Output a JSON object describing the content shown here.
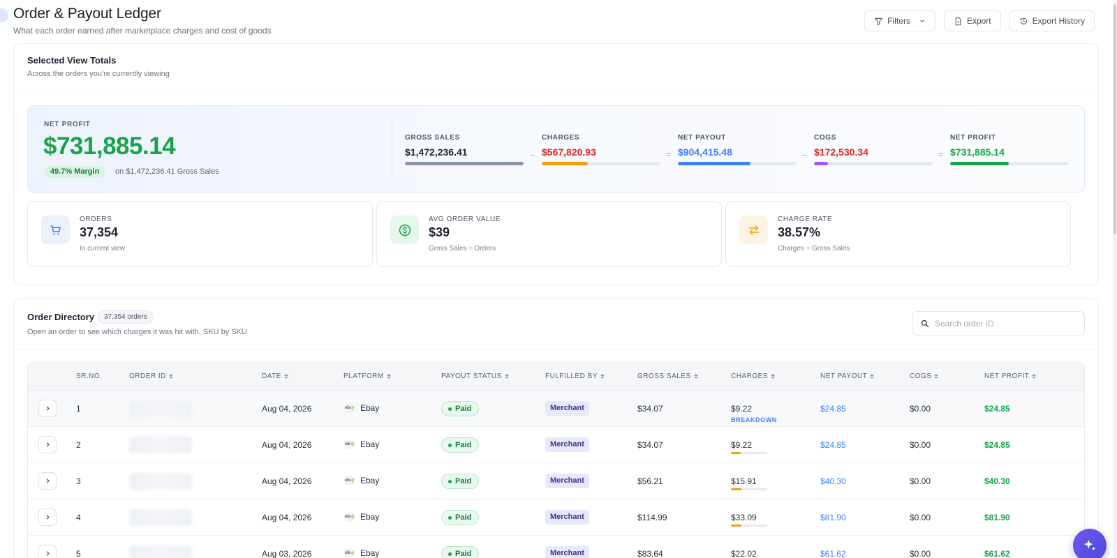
{
  "header": {
    "title": "Order & Payout Ledger",
    "subtitle": "What each order earned after marketplace charges and cost of goods",
    "filters_label": "Filters",
    "export_label": "Export",
    "export_history_label": "Export History"
  },
  "totals": {
    "title": "Selected View Totals",
    "subtitle": "Across the orders you're currently viewing",
    "hero": {
      "label": "NET PROFIT",
      "value": "$731,885.14",
      "margin_badge": "49.7% Margin",
      "margin_text": "on $1,472,236.41 Gross Sales"
    },
    "flow": [
      {
        "label": "GROSS SALES",
        "value": "$1,472,236.41",
        "fill": 1.0,
        "color": "#8a94a8",
        "value_color": "#1f2330"
      },
      {
        "label": "CHARGES",
        "value": "$567,820.93",
        "fill": 0.386,
        "color": "#f59e0b",
        "value_color": "#dc2626"
      },
      {
        "label": "NET PAYOUT",
        "value": "$904,415.48",
        "fill": 0.614,
        "color": "#3b82f6",
        "value_color": "#3b82f6"
      },
      {
        "label": "COGS",
        "value": "$172,530.34",
        "fill": 0.117,
        "color": "#a855f7",
        "value_color": "#dc2626"
      },
      {
        "label": "NET PROFIT",
        "value": "$731,885.14",
        "fill": 0.497,
        "color": "#16a34a",
        "value_color": "#16a34a"
      }
    ],
    "operators": [
      "–",
      "=",
      "–",
      "="
    ],
    "kpis": [
      {
        "label": "ORDERS",
        "value": "37,354",
        "sub": "In current view",
        "icon": "cart-icon"
      },
      {
        "label": "AVG ORDER VALUE",
        "value": "$39",
        "sub": "Gross Sales ÷ Orders",
        "icon": "dollar-circle-icon"
      },
      {
        "label": "CHARGE RATE",
        "value": "38.57%",
        "sub": "Charges ÷ Gross Sales",
        "icon": "swap-arrows-icon"
      }
    ]
  },
  "directory": {
    "title": "Order Directory",
    "count_badge": "37,354 orders",
    "subtitle": "Open an order to see which charges it was hit with, SKU by SKU",
    "search_placeholder": "Search order ID",
    "columns": [
      "SR.NO.",
      "ORDER ID",
      "DATE",
      "PLATFORM",
      "PAYOUT STATUS",
      "FULFILLED BY",
      "GROSS SALES",
      "CHARGES",
      "NET PAYOUT",
      "COGS",
      "NET PROFIT"
    ],
    "breakdown_label": "BREAKDOWN",
    "rows": [
      {
        "sr": "1",
        "date": "Aug 04, 2026",
        "platform": "Ebay",
        "status": "Paid",
        "fulfilled": "Merchant",
        "gross": "$34.07",
        "charges": "$9.22",
        "charge_rate": 0.271,
        "payout": "$24.85",
        "cogs": "$0.00",
        "profit": "$24.85"
      },
      {
        "sr": "2",
        "date": "Aug 04, 2026",
        "platform": "Ebay",
        "status": "Paid",
        "fulfilled": "Merchant",
        "gross": "$34.07",
        "charges": "$9.22",
        "charge_rate": 0.271,
        "payout": "$24.85",
        "cogs": "$0.00",
        "profit": "$24.85"
      },
      {
        "sr": "3",
        "date": "Aug 04, 2026",
        "platform": "Ebay",
        "status": "Paid",
        "fulfilled": "Merchant",
        "gross": "$56.21",
        "charges": "$15.91",
        "charge_rate": 0.283,
        "payout": "$40.30",
        "cogs": "$0.00",
        "profit": "$40.30"
      },
      {
        "sr": "4",
        "date": "Aug 04, 2026",
        "platform": "Ebay",
        "status": "Paid",
        "fulfilled": "Merchant",
        "gross": "$114.99",
        "charges": "$33.09",
        "charge_rate": 0.288,
        "payout": "$81.90",
        "cogs": "$0.00",
        "profit": "$81.90"
      },
      {
        "sr": "5",
        "date": "Aug 03, 2026",
        "platform": "Ebay",
        "status": "Paid",
        "fulfilled": "Merchant",
        "gross": "$83.64",
        "charges": "$22.02",
        "charge_rate": 0.263,
        "payout": "$61.62",
        "cogs": "$0.00",
        "profit": "$61.62"
      }
    ]
  }
}
